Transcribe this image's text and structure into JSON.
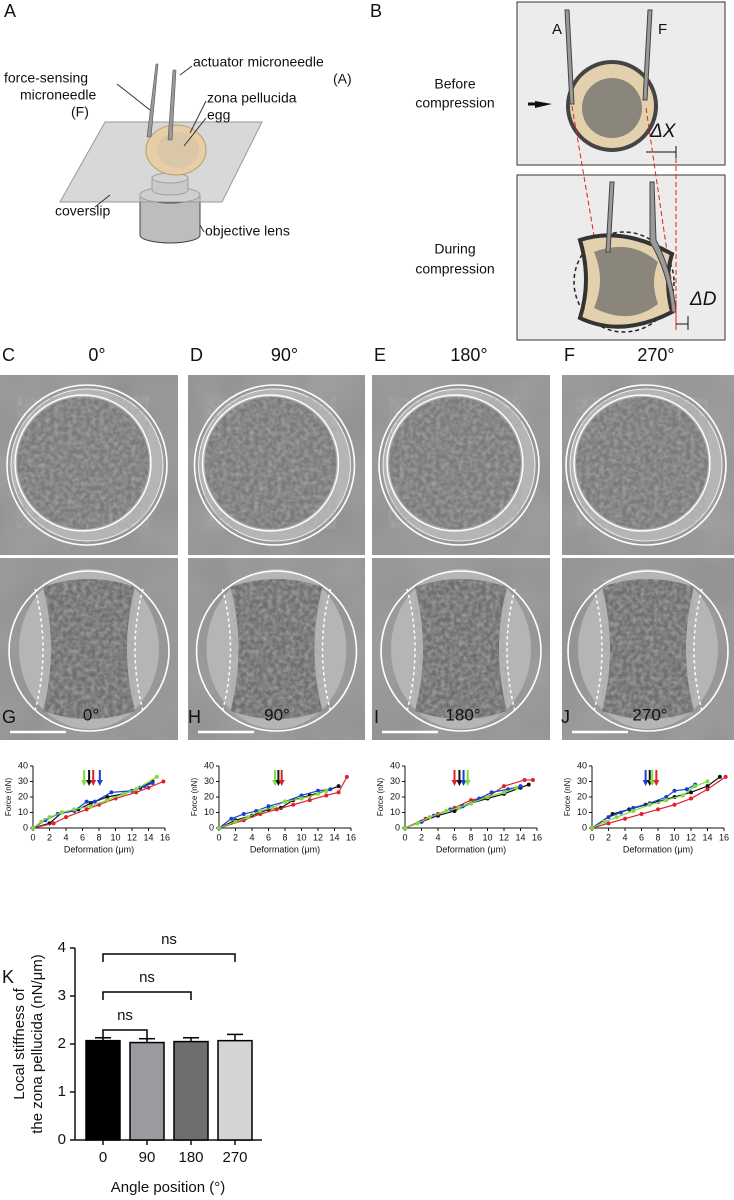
{
  "panel_labels": [
    "A",
    "B",
    "C",
    "D",
    "E",
    "F",
    "G",
    "H",
    "I",
    "J",
    "K"
  ],
  "diagram_a": {
    "force_needle": [
      "force-sensing",
      "microneedle",
      "(F)"
    ],
    "actuator": [
      "actuator microneedle",
      "(A)"
    ],
    "zona": "zona pellucida",
    "egg": "egg",
    "coverslip": "coverslip",
    "objective": "objective lens"
  },
  "diagram_b": {
    "needle_a": "A",
    "needle_f": "F",
    "before": [
      "Before",
      "compression"
    ],
    "during": [
      "During",
      "compression"
    ],
    "delta_x": "ΔX",
    "delta_d": "ΔD"
  },
  "images": [
    {
      "angle": "0°"
    },
    {
      "angle": "90°"
    },
    {
      "angle": "180°"
    },
    {
      "angle": "270°"
    }
  ],
  "chart_data": [
    {
      "type": "line",
      "title": "0°",
      "xlabel": "Deformation (μm)",
      "ylabel": "Force (nN)",
      "xlim": [
        0,
        16
      ],
      "xticks": [
        0,
        2,
        4,
        6,
        8,
        10,
        12,
        14,
        16
      ],
      "ylim": [
        0,
        40
      ],
      "yticks": [
        0,
        10,
        20,
        30,
        40
      ],
      "series": [
        {
          "color": "#111111",
          "x": [
            0,
            2,
            3.5,
            5.5,
            7,
            9,
            11,
            13,
            14.5
          ],
          "values": [
            0,
            3,
            10,
            12,
            16,
            20,
            22,
            26,
            30
          ]
        },
        {
          "color": "#e0202a",
          "x": [
            0,
            2.5,
            4,
            6.5,
            8,
            10,
            12.5,
            14,
            15.8
          ],
          "values": [
            0,
            3,
            7,
            12,
            15,
            19,
            23,
            26,
            30
          ]
        },
        {
          "color": "#1a3fd6",
          "x": [
            0,
            1.5,
            3,
            5,
            6.5,
            7.5,
            9.5,
            12,
            13.5,
            14.5
          ],
          "values": [
            0,
            5,
            9,
            11,
            17,
            17,
            23,
            24,
            27,
            29
          ]
        },
        {
          "color": "#7ddc3c",
          "x": [
            0,
            1,
            2,
            3.5,
            5,
            7,
            9,
            11,
            12.5,
            15
          ],
          "values": [
            0,
            4,
            7,
            10,
            12,
            14,
            18,
            22,
            25,
            33
          ]
        }
      ],
      "arrows": [
        {
          "x": 6.2,
          "color": "#7ddc3c"
        },
        {
          "x": 6.8,
          "color": "#111111"
        },
        {
          "x": 7.3,
          "color": "#e0202a"
        },
        {
          "x": 8.1,
          "color": "#1a3fd6"
        }
      ]
    },
    {
      "type": "line",
      "title": "90°",
      "xlabel": "Deformation (μm)",
      "ylabel": "Force (nN)",
      "xlim": [
        0,
        16
      ],
      "xticks": [
        0,
        2,
        4,
        6,
        8,
        10,
        12,
        14,
        16
      ],
      "ylim": [
        0,
        40
      ],
      "yticks": [
        0,
        10,
        20,
        30,
        40
      ],
      "series": [
        {
          "color": "#111111",
          "x": [
            0,
            2,
            4,
            6,
            7.5,
            9,
            11,
            13,
            14.5
          ],
          "values": [
            0,
            5,
            8,
            12,
            13,
            18,
            21,
            24,
            27
          ]
        },
        {
          "color": "#e0202a",
          "x": [
            0,
            3,
            5,
            7,
            9,
            11,
            13,
            14.5,
            15.5
          ],
          "values": [
            0,
            5,
            9,
            12,
            15,
            18,
            21,
            23,
            33
          ]
        },
        {
          "color": "#1a3fd6",
          "x": [
            0,
            1.5,
            3,
            4.5,
            6,
            8,
            10,
            12,
            13.5
          ],
          "values": [
            0,
            6,
            9,
            11,
            14,
            17,
            21,
            24,
            25
          ]
        },
        {
          "color": "#7ddc3c",
          "x": [
            0,
            2,
            3.5,
            5,
            6.5,
            8,
            10,
            12,
            13
          ],
          "values": [
            0,
            4,
            7,
            11,
            13,
            17,
            19,
            22,
            24
          ]
        }
      ],
      "arrows": [
        {
          "x": 6.8,
          "color": "#7ddc3c"
        },
        {
          "x": 7.2,
          "color": "#111111"
        },
        {
          "x": 7.6,
          "color": "#e0202a"
        }
      ]
    },
    {
      "type": "line",
      "title": "180°",
      "xlabel": "Deformation (μm)",
      "ylabel": "Force (nN)",
      "xlim": [
        0,
        16
      ],
      "xticks": [
        0,
        2,
        4,
        6,
        8,
        10,
        12,
        14,
        16
      ],
      "ylim": [
        0,
        40
      ],
      "yticks": [
        0,
        10,
        20,
        30,
        40
      ],
      "series": [
        {
          "color": "#111111",
          "x": [
            0,
            2,
            4,
            6,
            8,
            10,
            12,
            14,
            15
          ],
          "values": [
            0,
            4,
            8,
            11,
            16,
            19,
            22,
            26,
            28
          ]
        },
        {
          "color": "#e0202a",
          "x": [
            0,
            2.5,
            4,
            6,
            8,
            10,
            12,
            14.5,
            15.5
          ],
          "values": [
            0,
            6,
            9,
            13,
            18,
            20,
            27,
            31,
            31
          ]
        },
        {
          "color": "#1a3fd6",
          "x": [
            0,
            2,
            3.5,
            5.5,
            7,
            9,
            10.5,
            12.5,
            14
          ],
          "values": [
            0,
            4,
            8,
            12,
            14,
            19,
            23,
            25,
            27
          ]
        },
        {
          "color": "#7ddc3c",
          "x": [
            0,
            1.5,
            3,
            5,
            6.5,
            8,
            10,
            12,
            13.5
          ],
          "values": [
            0,
            3,
            7,
            11,
            13,
            16,
            20,
            23,
            26
          ]
        }
      ],
      "arrows": [
        {
          "x": 6.0,
          "color": "#e0202a"
        },
        {
          "x": 6.6,
          "color": "#111111"
        },
        {
          "x": 7.1,
          "color": "#1a3fd6"
        },
        {
          "x": 7.6,
          "color": "#7ddc3c"
        }
      ]
    },
    {
      "type": "line",
      "title": "270°",
      "xlabel": "Deformation (μm)",
      "ylabel": "Force (nN)",
      "xlim": [
        0,
        16
      ],
      "xticks": [
        0,
        2,
        4,
        6,
        8,
        10,
        12,
        14,
        16
      ],
      "ylim": [
        0,
        40
      ],
      "yticks": [
        0,
        10,
        20,
        30,
        40
      ],
      "series": [
        {
          "color": "#111111",
          "x": [
            0,
            2.5,
            4.5,
            6.5,
            8,
            10,
            12,
            14,
            15.5
          ],
          "values": [
            0,
            9,
            12,
            15,
            17,
            20,
            23,
            27,
            33
          ]
        },
        {
          "color": "#e0202a",
          "x": [
            0,
            2,
            4,
            6,
            8,
            10,
            12,
            14,
            16.2
          ],
          "values": [
            0,
            3,
            6,
            9,
            12,
            15,
            19,
            25,
            33
          ]
        },
        {
          "color": "#1a3fd6",
          "x": [
            0,
            2,
            3.5,
            5,
            7,
            9,
            10,
            11.5,
            12.5
          ],
          "values": [
            0,
            7,
            10,
            13,
            16,
            20,
            24,
            25,
            28
          ]
        },
        {
          "color": "#7ddc3c",
          "x": [
            0,
            1.5,
            3,
            5,
            7,
            9,
            11,
            12.5,
            14
          ],
          "values": [
            0,
            4,
            7,
            11,
            15,
            18,
            21,
            27,
            30
          ]
        }
      ],
      "arrows": [
        {
          "x": 6.5,
          "color": "#1a3fd6"
        },
        {
          "x": 7.0,
          "color": "#111111"
        },
        {
          "x": 7.3,
          "color": "#7ddc3c"
        },
        {
          "x": 7.8,
          "color": "#e0202a"
        }
      ]
    },
    {
      "type": "bar",
      "ylabel": [
        "Local stiffness of",
        "the zona pellucida (nN/μm)"
      ],
      "xlabel": "Angle position (°)",
      "categories": [
        "0",
        "90",
        "180",
        "270"
      ],
      "values": [
        2.07,
        2.03,
        2.05,
        2.07
      ],
      "errors": [
        0.06,
        0.08,
        0.08,
        0.13
      ],
      "colors": [
        "#000000",
        "#9a9aa0",
        "#6e6e6e",
        "#d4d4d4"
      ],
      "ylim": [
        0,
        4
      ],
      "yticks": [
        0,
        1,
        2,
        3,
        4
      ],
      "comparisons": [
        {
          "pair": [
            "0",
            "90"
          ],
          "label": "ns"
        },
        {
          "pair": [
            "0",
            "180"
          ],
          "label": "ns"
        },
        {
          "pair": [
            "0",
            "270"
          ],
          "label": "ns"
        }
      ]
    }
  ]
}
